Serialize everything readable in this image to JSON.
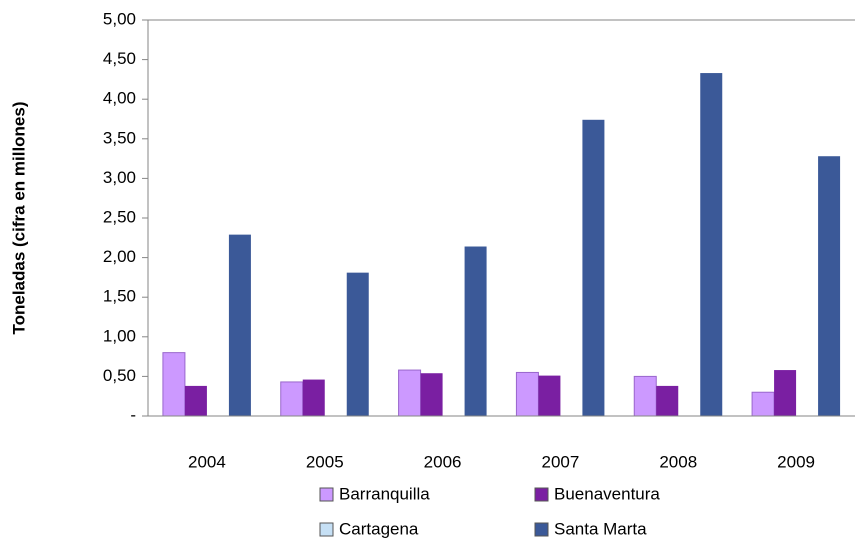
{
  "chart_data": {
    "type": "bar",
    "y_label": "Toneladas  (cifra en millones)",
    "categories": [
      "2004",
      "2005",
      "2006",
      "2007",
      "2008",
      "2009"
    ],
    "series": [
      {
        "name": "Barranquilla",
        "color": "#cc99ff",
        "values": [
          0.8,
          0.43,
          0.58,
          0.55,
          0.5,
          0.3
        ]
      },
      {
        "name": "Buenaventura",
        "color": "#7a1fa2",
        "values": [
          0.38,
          0.46,
          0.54,
          0.51,
          0.38,
          0.58
        ]
      },
      {
        "name": "Cartagena",
        "color": "#c6e0f5",
        "values": [
          0,
          0,
          0,
          0,
          0,
          0
        ]
      },
      {
        "name": "Santa Marta",
        "color": "#3b5998",
        "values": [
          2.29,
          1.81,
          2.14,
          3.74,
          4.33,
          3.28
        ]
      }
    ],
    "ylim": [
      0,
      5
    ],
    "yticks": [
      {
        "value": 0,
        "label": "-"
      },
      {
        "value": 0.5,
        "label": "0,50"
      },
      {
        "value": 1,
        "label": "1,00"
      },
      {
        "value": 1.5,
        "label": "1,50"
      },
      {
        "value": 2,
        "label": "2,00"
      },
      {
        "value": 2.5,
        "label": "2,50"
      },
      {
        "value": 3,
        "label": "3,00"
      },
      {
        "value": 3.5,
        "label": "3,50"
      },
      {
        "value": 4,
        "label": "4,00"
      },
      {
        "value": 4.5,
        "label": "4,50"
      },
      {
        "value": 5,
        "label": "5,00"
      }
    ],
    "grid": false,
    "legend": "bottom"
  }
}
